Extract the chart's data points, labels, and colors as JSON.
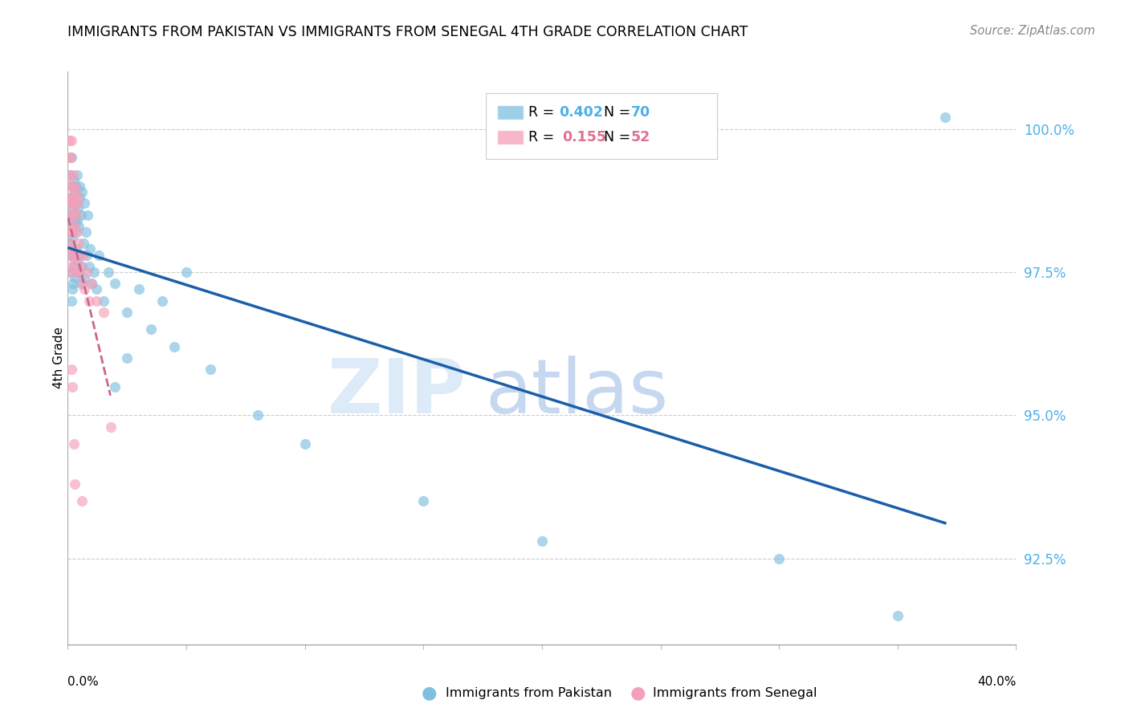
{
  "title": "IMMIGRANTS FROM PAKISTAN VS IMMIGRANTS FROM SENEGAL 4TH GRADE CORRELATION CHART",
  "source": "Source: ZipAtlas.com",
  "ylabel": "4th Grade",
  "r_pakistan": 0.402,
  "n_pakistan": 70,
  "r_senegal": 0.155,
  "n_senegal": 52,
  "color_pakistan": "#7fbfdf",
  "color_senegal": "#f4a0b8",
  "trendline_pakistan": "#1a5fa8",
  "trendline_senegal": "#cc6688",
  "trendline_senegal_style": "--",
  "yticks": [
    92.5,
    95.0,
    97.5,
    100.0
  ],
  "ylim": [
    91.0,
    101.0
  ],
  "xlim": [
    0.0,
    40.0
  ],
  "pakistan_x": [
    0.05,
    0.08,
    0.1,
    0.1,
    0.12,
    0.12,
    0.15,
    0.15,
    0.15,
    0.18,
    0.18,
    0.2,
    0.2,
    0.22,
    0.22,
    0.25,
    0.25,
    0.25,
    0.28,
    0.28,
    0.3,
    0.3,
    0.32,
    0.32,
    0.35,
    0.35,
    0.38,
    0.4,
    0.4,
    0.42,
    0.45,
    0.45,
    0.48,
    0.5,
    0.5,
    0.55,
    0.55,
    0.6,
    0.6,
    0.65,
    0.7,
    0.7,
    0.75,
    0.8,
    0.85,
    0.9,
    0.95,
    1.0,
    1.1,
    1.2,
    1.3,
    1.5,
    1.7,
    2.0,
    2.5,
    3.0,
    4.0,
    5.0,
    2.0,
    2.5,
    3.5,
    4.5,
    6.0,
    8.0,
    10.0,
    15.0,
    20.0,
    30.0,
    35.0,
    37.0
  ],
  "pakistan_y": [
    97.8,
    98.5,
    98.0,
    99.2,
    98.8,
    97.5,
    99.5,
    98.3,
    97.0,
    98.6,
    97.2,
    99.0,
    98.1,
    98.7,
    97.3,
    99.1,
    98.4,
    97.6,
    98.9,
    97.4,
    98.5,
    97.8,
    99.0,
    98.2,
    98.7,
    97.9,
    98.4,
    99.2,
    97.7,
    98.6,
    98.3,
    97.5,
    98.8,
    99.0,
    97.8,
    98.5,
    97.3,
    98.9,
    97.6,
    98.0,
    98.7,
    97.4,
    98.2,
    97.8,
    98.5,
    97.6,
    97.9,
    97.3,
    97.5,
    97.2,
    97.8,
    97.0,
    97.5,
    97.3,
    96.8,
    97.2,
    97.0,
    97.5,
    95.5,
    96.0,
    96.5,
    96.2,
    95.8,
    95.0,
    94.5,
    93.5,
    92.8,
    92.5,
    91.5,
    100.2
  ],
  "senegal_x": [
    0.02,
    0.04,
    0.05,
    0.05,
    0.07,
    0.08,
    0.08,
    0.1,
    0.1,
    0.1,
    0.12,
    0.12,
    0.15,
    0.15,
    0.15,
    0.18,
    0.18,
    0.2,
    0.2,
    0.22,
    0.22,
    0.25,
    0.25,
    0.28,
    0.28,
    0.3,
    0.3,
    0.32,
    0.35,
    0.35,
    0.38,
    0.4,
    0.4,
    0.42,
    0.45,
    0.5,
    0.55,
    0.6,
    0.65,
    0.7,
    0.8,
    0.9,
    1.0,
    1.2,
    1.5,
    0.1,
    0.15,
    0.2,
    0.25,
    0.3,
    0.6,
    1.8
  ],
  "senegal_y": [
    99.5,
    98.8,
    99.8,
    98.2,
    99.0,
    98.5,
    97.8,
    99.2,
    98.7,
    97.5,
    99.5,
    98.3,
    99.8,
    98.8,
    97.6,
    99.0,
    98.2,
    98.7,
    97.9,
    99.2,
    98.5,
    98.8,
    97.8,
    99.0,
    98.3,
    98.6,
    97.7,
    98.9,
    98.5,
    97.5,
    98.8,
    98.2,
    97.5,
    98.7,
    98.0,
    97.8,
    97.6,
    97.3,
    97.8,
    97.2,
    97.5,
    97.0,
    97.3,
    97.0,
    96.8,
    98.0,
    95.8,
    95.5,
    94.5,
    93.8,
    93.5,
    94.8
  ]
}
